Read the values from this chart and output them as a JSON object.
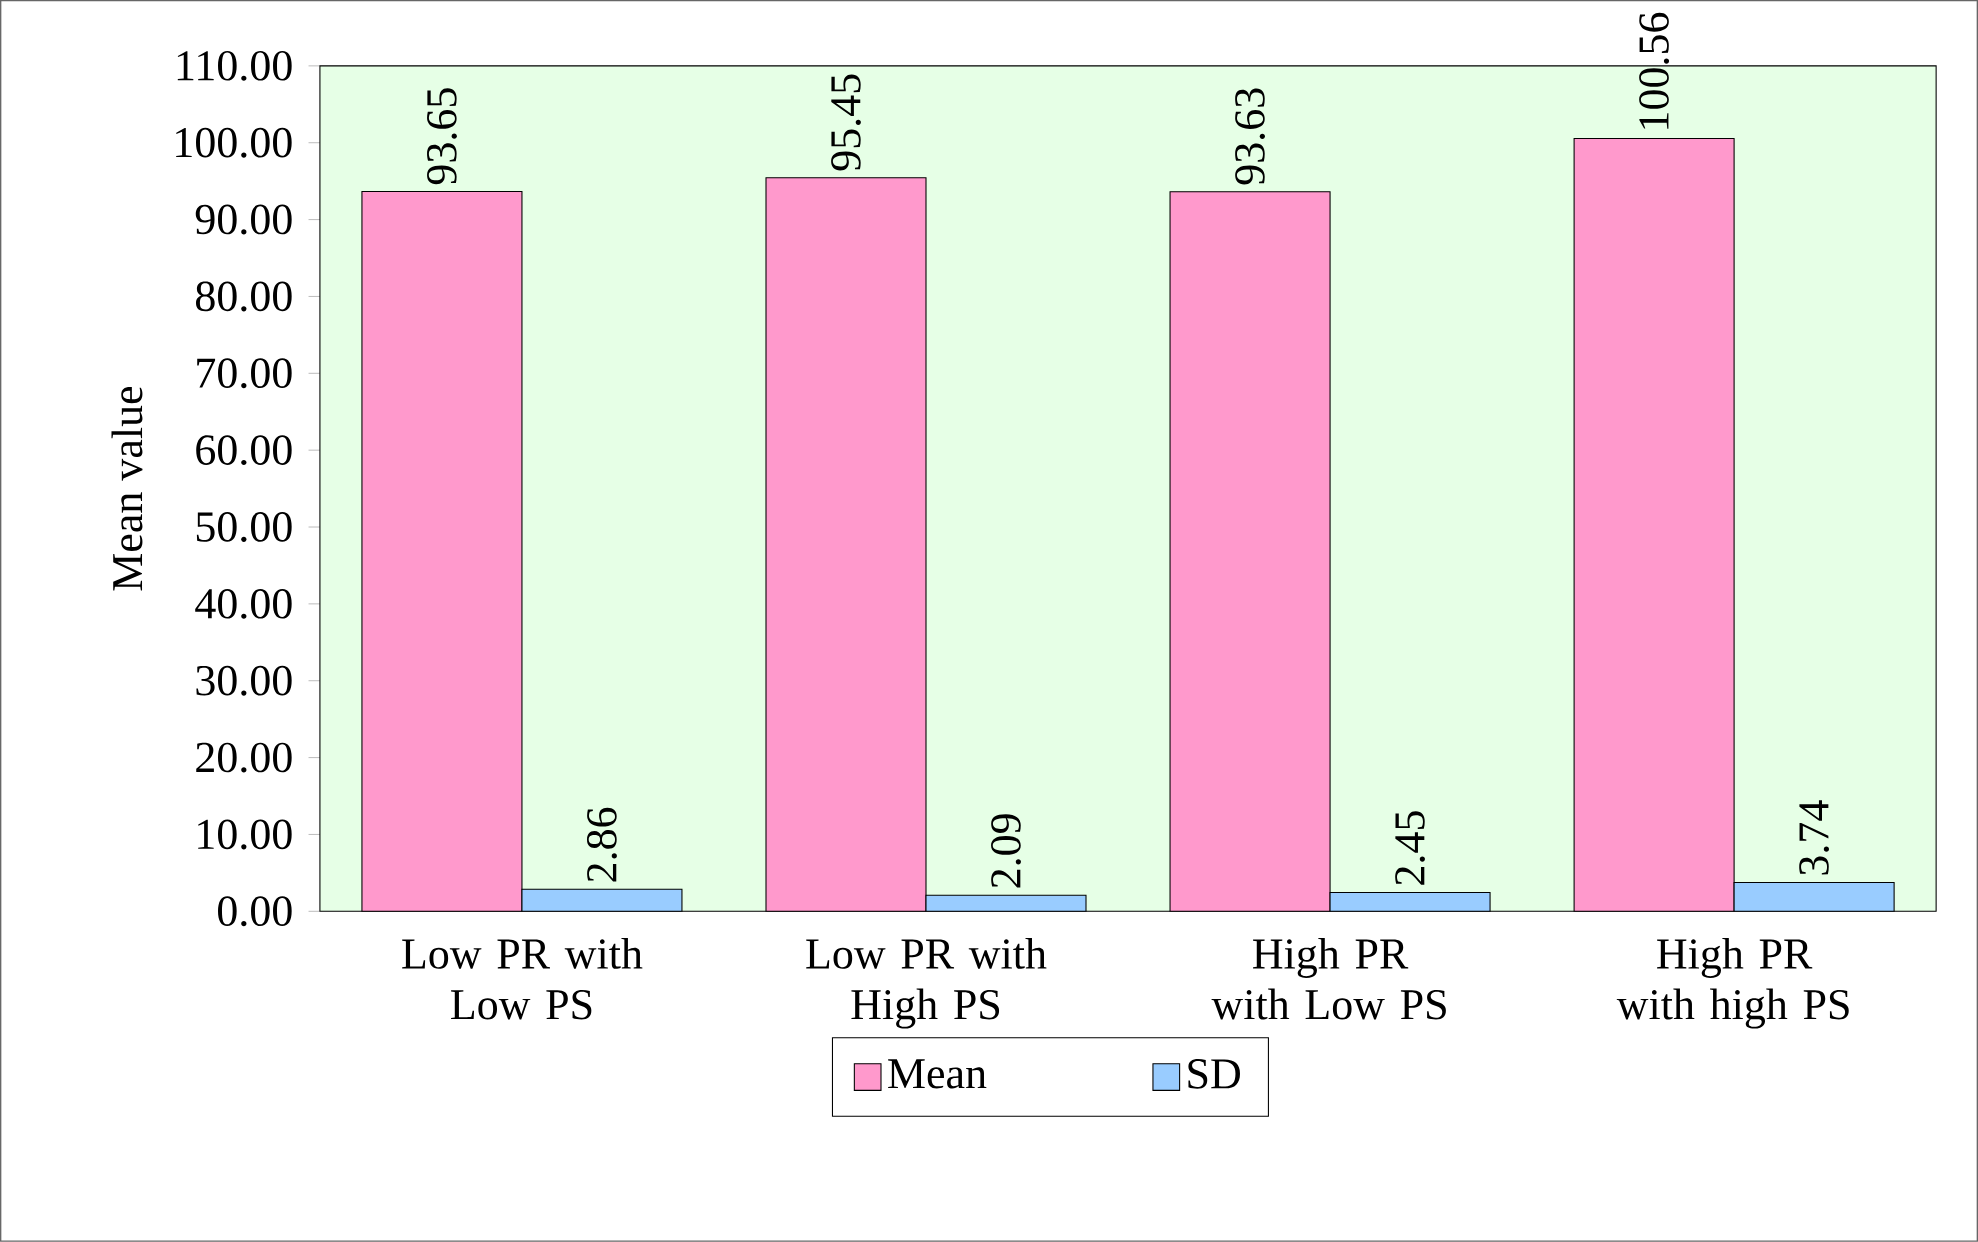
{
  "chart_data": {
    "type": "bar",
    "ylabel": "Mean value",
    "categories": [
      "Low PR with Low PS",
      "Low PR with High PS",
      "High PR with Low PS",
      "High PR with high PS"
    ],
    "series": [
      {
        "name": "Mean",
        "color": "#ff99cc",
        "values": [
          93.65,
          95.45,
          93.63,
          100.56
        ],
        "value_labels": [
          "93.65",
          "95.45",
          "93.63",
          "100.56"
        ]
      },
      {
        "name": "SD",
        "color": "#99ccff",
        "values": [
          2.86,
          2.09,
          2.45,
          3.74
        ],
        "value_labels": [
          "2.86",
          "2.09",
          "2.45",
          "3.74"
        ]
      }
    ],
    "ylim": [
      0,
      110
    ],
    "yticks": [
      {
        "value": 0,
        "label": "0.00"
      },
      {
        "value": 10,
        "label": "10.00"
      },
      {
        "value": 20,
        "label": "20.00"
      },
      {
        "value": 30,
        "label": "30.00"
      },
      {
        "value": 40,
        "label": "40.00"
      },
      {
        "value": 50,
        "label": "50.00"
      },
      {
        "value": 60,
        "label": "60.00"
      },
      {
        "value": 70,
        "label": "70.00"
      },
      {
        "value": 80,
        "label": "80.00"
      },
      {
        "value": 90,
        "label": "90.00"
      },
      {
        "value": 100,
        "label": "100.00"
      },
      {
        "value": 110,
        "label": "110.00"
      }
    ],
    "legend": "bottom",
    "grid": false
  }
}
